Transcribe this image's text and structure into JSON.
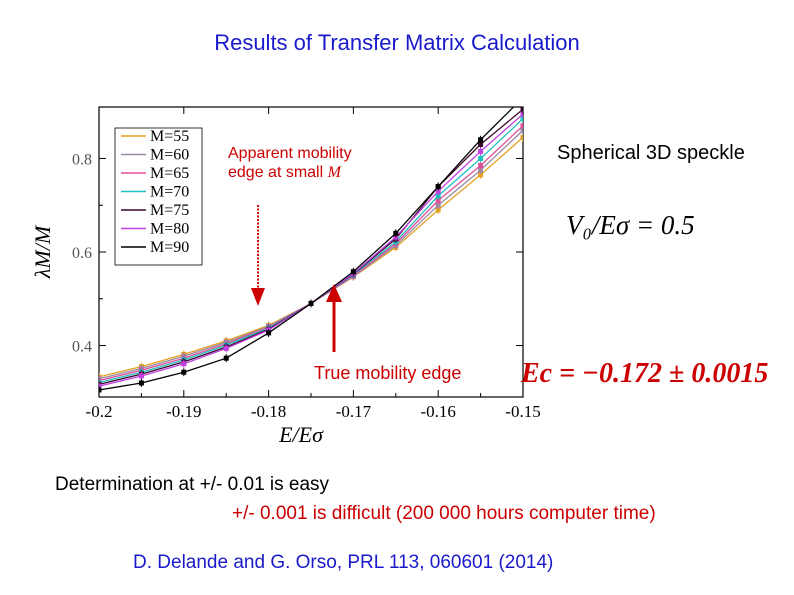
{
  "slide": {
    "title": "Results of Transfer Matrix Calculation",
    "annotation_apparent_line1": "Apparent mobility",
    "annotation_apparent_line2": "edge at small ",
    "annotation_apparent_m": "M",
    "annotation_speckle": "Spherical 3D speckle",
    "equation_v0": "V₀/Eσ = 0.5",
    "annotation_true": "True mobility edge",
    "equation_ec": "Ec = −0.172 ± 0.0015",
    "note_line1": "Determination at +/- 0.01 is easy",
    "note_line2": "+/- 0.001 is difficult (200 000 hours computer time)",
    "citation": "D. Delande and G. Orso, PRL 113, 060601 (2014)"
  },
  "colors": {
    "title": "#1a1acc",
    "annotation": "#cc0000",
    "citation": "#1a1acc"
  },
  "chart_data": {
    "type": "line",
    "xlabel": "E/Eσ",
    "ylabel": "λM/M",
    "xlim": [
      -0.2,
      -0.15
    ],
    "ylim": [
      0.29,
      0.91
    ],
    "xticks": [
      -0.2,
      -0.19,
      -0.18,
      -0.17,
      -0.16,
      -0.15
    ],
    "xtick_labels": [
      "-0.2",
      "-0.19",
      "-0.18",
      "-0.17",
      "-0.16",
      "-0.15"
    ],
    "yticks": [
      0.4,
      0.6,
      0.8
    ],
    "ytick_labels": [
      "0.4",
      "0.6",
      "0.8"
    ],
    "legend_position": "top-left",
    "x": [
      -0.2,
      -0.195,
      -0.19,
      -0.185,
      -0.18,
      -0.175,
      -0.17,
      -0.165,
      -0.16,
      -0.155,
      -0.15
    ],
    "series": [
      {
        "name": "M=55",
        "color": "#e6a020",
        "values": [
          0.333,
          0.355,
          0.381,
          0.41,
          0.443,
          0.49,
          0.547,
          0.61,
          0.69,
          0.765,
          0.845
        ]
      },
      {
        "name": "M=60",
        "color": "#9a8aa6",
        "values": [
          0.329,
          0.351,
          0.377,
          0.407,
          0.441,
          0.49,
          0.548,
          0.614,
          0.7,
          0.775,
          0.86
        ]
      },
      {
        "name": "M=65",
        "color": "#e0509a",
        "values": [
          0.325,
          0.347,
          0.373,
          0.404,
          0.439,
          0.49,
          0.549,
          0.618,
          0.71,
          0.785,
          0.87
        ]
      },
      {
        "name": "M=70",
        "color": "#20c0c0",
        "values": [
          0.321,
          0.343,
          0.369,
          0.401,
          0.437,
          0.49,
          0.551,
          0.622,
          0.72,
          0.8,
          0.885
        ]
      },
      {
        "name": "M=75",
        "color": "#3a0a2a",
        "values": [
          0.317,
          0.339,
          0.365,
          0.397,
          0.435,
          0.49,
          0.553,
          0.628,
          0.74,
          0.83,
          0.905
        ]
      },
      {
        "name": "M=80",
        "color": "#c040e0",
        "values": [
          0.313,
          0.335,
          0.361,
          0.394,
          0.433,
          0.49,
          0.554,
          0.632,
          0.73,
          0.815,
          0.895
        ]
      },
      {
        "name": "M=90",
        "color": "#000000",
        "values": [
          0.305,
          0.32,
          0.343,
          0.373,
          0.427,
          0.49,
          0.558,
          0.64,
          0.74,
          0.84,
          0.93
        ]
      }
    ]
  }
}
